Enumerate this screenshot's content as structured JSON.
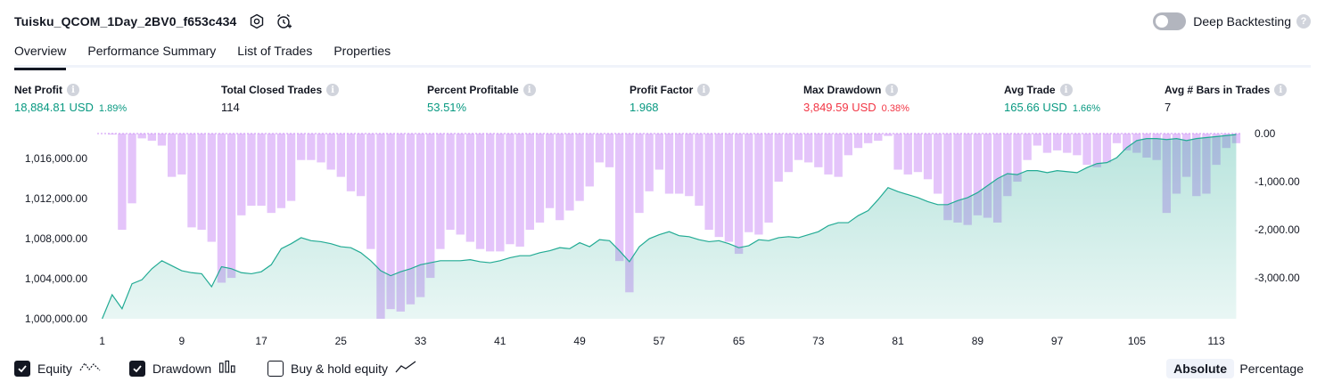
{
  "header": {
    "title": "Tuisku_QCOM_1Day_2BV0_f653c434",
    "deep_backtesting_label": "Deep Backtesting"
  },
  "tabs": [
    {
      "label": "Overview",
      "active": true
    },
    {
      "label": "Performance Summary",
      "active": false
    },
    {
      "label": "List of Trades",
      "active": false
    },
    {
      "label": "Properties",
      "active": false
    }
  ],
  "metrics": [
    {
      "label": "Net Profit",
      "value": "18,884.81 USD",
      "pct": "1.89%",
      "color": "green"
    },
    {
      "label": "Total Closed Trades",
      "value": "114",
      "pct": "",
      "color": "dark"
    },
    {
      "label": "Percent Profitable",
      "value": "53.51%",
      "pct": "",
      "color": "green"
    },
    {
      "label": "Profit Factor",
      "value": "1.968",
      "pct": "",
      "color": "green"
    },
    {
      "label": "Max Drawdown",
      "value": "3,849.59 USD",
      "pct": "0.38%",
      "color": "red"
    },
    {
      "label": "Avg Trade",
      "value": "165.66 USD",
      "pct": "1.66%",
      "color": "green"
    },
    {
      "label": "Avg # Bars in Trades",
      "value": "7",
      "pct": "",
      "color": "dark"
    }
  ],
  "legend": {
    "equity_label": "Equity",
    "drawdown_label": "Drawdown",
    "buyhold_label": "Buy & hold equity",
    "absolute_label": "Absolute",
    "percentage_label": "Percentage"
  },
  "colors": {
    "equity_line": "#22ab94",
    "equity_fill": "#22ab94",
    "drawdown_bar": "#ce93f5",
    "accent_green": "#089981",
    "accent_red": "#f23645"
  },
  "chart_data": {
    "type": "bar+area",
    "x_ticks": [
      "1",
      "9",
      "17",
      "25",
      "33",
      "41",
      "49",
      "57",
      "65",
      "73",
      "81",
      "89",
      "97",
      "105",
      "113"
    ],
    "left_axis": {
      "ticks": [
        "1,016,000.00",
        "1,012,000.00",
        "1,008,000.00",
        "1,004,000.00",
        "1,000,000.00"
      ],
      "ylim": [
        1000000,
        1018500
      ]
    },
    "right_axis": {
      "ticks": [
        "0.00",
        "-1,000.00",
        "-2,000.00",
        "-3,000.00"
      ],
      "ylim": [
        -3850,
        0
      ]
    },
    "trades": 115,
    "equity": [
      1000000,
      1002400,
      1001000,
      1003500,
      1003900,
      1005000,
      1005800,
      1005300,
      1004800,
      1004600,
      1004500,
      1003200,
      1005200,
      1005000,
      1004600,
      1004500,
      1004700,
      1005400,
      1007000,
      1007500,
      1008100,
      1007800,
      1007700,
      1007500,
      1007200,
      1007100,
      1006600,
      1005800,
      1004800,
      1004300,
      1004700,
      1005000,
      1005400,
      1005600,
      1005800,
      1005800,
      1005800,
      1005900,
      1005700,
      1005600,
      1005800,
      1006100,
      1006300,
      1006300,
      1006600,
      1006800,
      1007100,
      1007000,
      1007600,
      1007200,
      1007900,
      1007800,
      1006800,
      1005700,
      1007200,
      1008000,
      1008400,
      1008700,
      1008300,
      1008200,
      1007900,
      1007700,
      1007800,
      1007500,
      1007100,
      1007300,
      1007900,
      1007800,
      1008100,
      1008200,
      1008100,
      1008400,
      1008700,
      1009300,
      1009600,
      1009600,
      1010300,
      1010800,
      1011900,
      1013100,
      1012700,
      1012400,
      1012100,
      1011700,
      1011400,
      1011400,
      1011800,
      1012100,
      1012600,
      1013300,
      1014000,
      1014500,
      1014400,
      1014800,
      1014800,
      1014600,
      1014800,
      1014700,
      1014600,
      1015100,
      1015500,
      1015600,
      1016100,
      1017100,
      1017800,
      1018000,
      1018000,
      1017900,
      1018000,
      1017800,
      1018000,
      1018100,
      1018200,
      1018300,
      1018400
    ],
    "drawdown": [
      0,
      -20,
      -2000,
      -1450,
      -100,
      -150,
      -250,
      -900,
      -850,
      -1950,
      -2000,
      -2250,
      -3100,
      -3000,
      -1700,
      -1500,
      -1500,
      -1650,
      -1550,
      -1400,
      -550,
      -550,
      -600,
      -750,
      -900,
      -1200,
      -1300,
      -2400,
      -3850,
      -3650,
      -3700,
      -3550,
      -3400,
      -3000,
      -2400,
      -2000,
      -2100,
      -2250,
      -2400,
      -2450,
      -2450,
      -2300,
      -2350,
      -2000,
      -1850,
      -1550,
      -1800,
      -1600,
      -1400,
      -1100,
      -600,
      -700,
      -2650,
      -3300,
      -1650,
      -1200,
      -750,
      -1250,
      -1250,
      -1300,
      -1500,
      -2000,
      -2150,
      -2250,
      -2500,
      -2050,
      -2100,
      -1850,
      -1000,
      -800,
      -550,
      -600,
      -700,
      -850,
      -900,
      -450,
      -300,
      -200,
      -150,
      -50,
      -750,
      -850,
      -800,
      -950,
      -1250,
      -1800,
      -1850,
      -1900,
      -1700,
      -1750,
      -1850,
      -1300,
      -1000,
      -550,
      -250,
      -400,
      -350,
      -400,
      -450,
      -650,
      -700,
      -600,
      -200,
      -350,
      -400,
      -500,
      -550,
      -1650,
      -1250,
      -900,
      -1300,
      -1250,
      -650,
      -300,
      -200
    ]
  }
}
